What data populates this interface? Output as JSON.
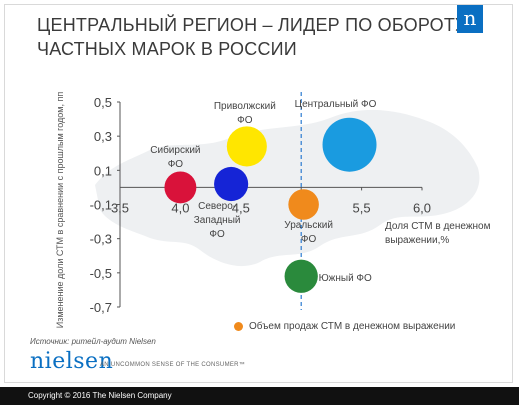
{
  "title_lines": [
    "ЦЕНТРАЛЬНЫЙ РЕГИОН – ЛИДЕР ПО ОБОРОТУ",
    "ЧАСТНЫХ МАРОК В РОССИИ"
  ],
  "logo_letter": "n",
  "legend_text": "Объем продаж СТМ в денежном выражении",
  "source": "Источник: ритейл-аудит Nielsen",
  "brand": "nielsen",
  "tagline": "AN UNCOMMON SENSE OF THE CONSUMER™",
  "footer": "Copyright © 2016 The Nielsen Company",
  "colors": {
    "accent": "#0a6fc2",
    "legend_dot": "#f08a1c"
  },
  "chart_data": {
    "type": "scatter",
    "title": "",
    "xlabel": "Доля СТМ  в денежном выражении,%",
    "ylabel": "Изменение доли СТМ в сравнении с прошлым годом, пп",
    "xlim": [
      3.5,
      6.0
    ],
    "ylim": [
      -0.7,
      0.5
    ],
    "x_ticks": [
      "3,5",
      "4,0",
      "4,5",
      "5,0",
      "5,5",
      "6,0"
    ],
    "y_ticks": [
      "0,5",
      "0,3",
      "0,1",
      "-0,1",
      "-0,3",
      "-0,5",
      "-0,7"
    ],
    "reference_x": 5.0,
    "size_legend": "Объем продаж СТМ в денежном выражении",
    "points": [
      {
        "label": "Приволжский ФО",
        "x": 4.55,
        "y": 0.24,
        "size": 0.55,
        "color": "#ffe600"
      },
      {
        "label": "Центральный ФО",
        "x": 5.4,
        "y": 0.25,
        "size": 1.0,
        "color": "#1a9be0"
      },
      {
        "label": "Сибирский ФО",
        "x": 4.0,
        "y": 0.0,
        "size": 0.35,
        "color": "#d9123a"
      },
      {
        "label": "Северо-Западный ФО",
        "x": 4.42,
        "y": 0.02,
        "size": 0.4,
        "color": "#1524d6"
      },
      {
        "label": "Уральский ФО",
        "x": 5.02,
        "y": -0.1,
        "size": 0.32,
        "color": "#f08a1c"
      },
      {
        "label": "Южный ФО",
        "x": 5.0,
        "y": -0.52,
        "size": 0.38,
        "color": "#2a8a3c"
      }
    ]
  }
}
